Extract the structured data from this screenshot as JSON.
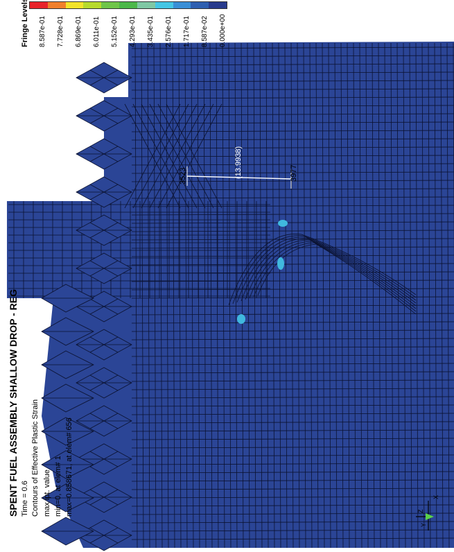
{
  "title": "SPENT FUEL ASSEMBLY SHALLOW DROP - REG",
  "info": {
    "time_line": "Time =      0.6",
    "contour_line": "Contours of Effective Plastic Strain",
    "value_type": "max ipt. value",
    "min_line": "min=0, at elem# 1",
    "max_line": "max=0.858671, at elem# 656"
  },
  "legend": {
    "heading": "Fringe Levels",
    "levels": [
      {
        "label": "8.587e-01",
        "color": "#e8232a"
      },
      {
        "label": "7.728e-01",
        "color": "#f07f2c"
      },
      {
        "label": "6.869e-01",
        "color": "#f2e32a"
      },
      {
        "label": "6.011e-01",
        "color": "#b7da2d"
      },
      {
        "label": "5.152e-01",
        "color": "#6fc54a"
      },
      {
        "label": "4.293e-01",
        "color": "#4cb84a"
      },
      {
        "label": "3.435e-01",
        "color": "#7fc8a4"
      },
      {
        "label": "2.576e-01",
        "color": "#45c6e4"
      },
      {
        "label": "1.717e-01",
        "color": "#3a8fd6"
      },
      {
        "label": "8.587e-02",
        "color": "#2f5fb0"
      },
      {
        "label": "0.000e+00",
        "color": "#283a8c"
      }
    ]
  },
  "annotations": {
    "dimension": "(13.9938)",
    "node_left": "3523",
    "node_right": "3977"
  },
  "triad": {
    "x_label": "X",
    "y_label": "Y",
    "z_label": "Z"
  },
  "colors": {
    "mesh_fill": "#2b4596",
    "mesh_line": "#0b1230",
    "hotspot": "#40b8de"
  }
}
